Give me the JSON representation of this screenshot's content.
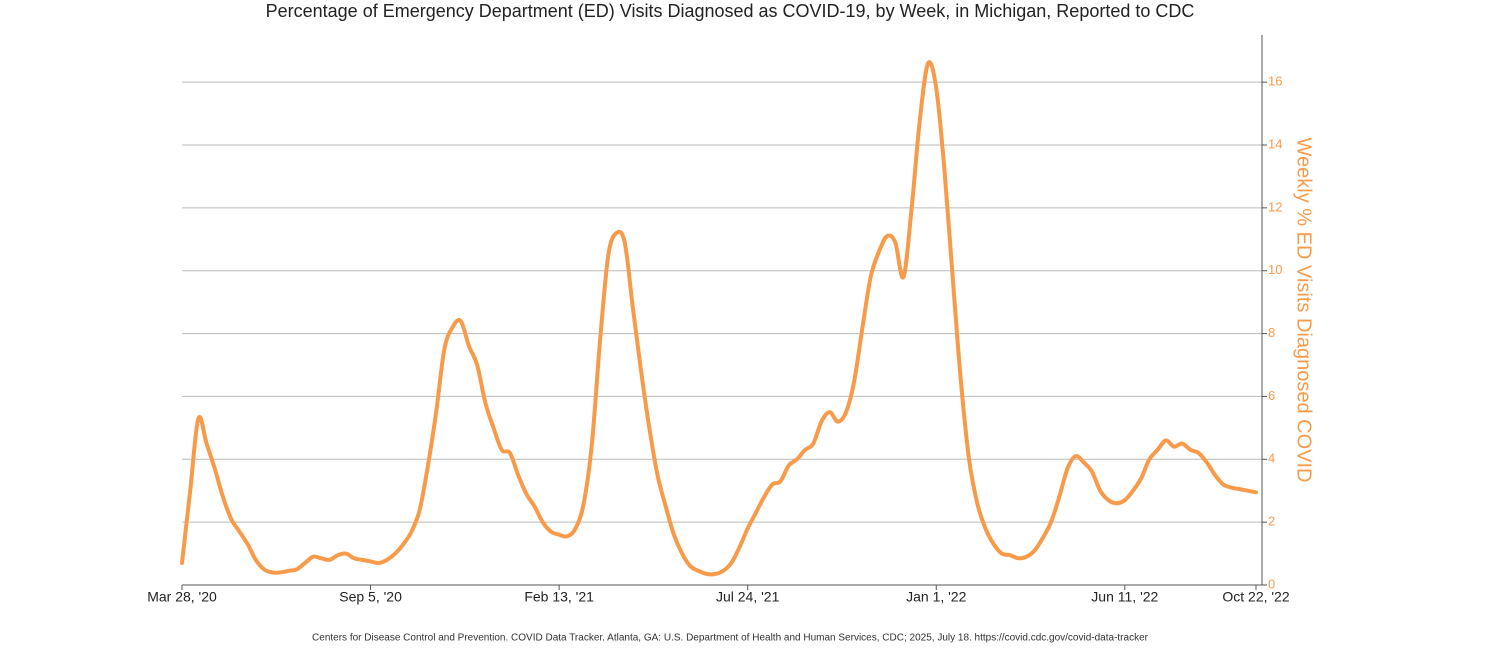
{
  "chart_data": {
    "type": "line",
    "title": "Percentage of Emergency Department (ED) Visits Diagnosed as COVID-19, by Week, in Michigan, Reported to CDC",
    "y_label": "Weekly % ED Visits Diagnosed COVID",
    "source": "Centers for Disease Control and Prevention. COVID Data Tracker. Atlanta, GA: U.S. Department of Health and Human Services, CDC; 2025, July 18. https://covid.cdc.gov/covid-data-tracker",
    "categories": [
      "Mar 28, '20",
      null,
      null,
      null,
      null,
      null,
      null,
      null,
      null,
      null,
      null,
      null,
      null,
      null,
      null,
      null,
      null,
      null,
      null,
      null,
      null,
      null,
      null,
      "Sep 5, '20",
      null,
      null,
      null,
      null,
      null,
      null,
      null,
      null,
      null,
      null,
      null,
      null,
      null,
      null,
      null,
      null,
      null,
      null,
      null,
      null,
      null,
      null,
      "Feb 13, '21",
      null,
      null,
      null,
      null,
      null,
      null,
      null,
      null,
      null,
      null,
      null,
      null,
      null,
      null,
      null,
      null,
      null,
      null,
      null,
      null,
      null,
      null,
      "Jul 24, '21",
      null,
      null,
      null,
      null,
      null,
      null,
      null,
      null,
      null,
      null,
      null,
      null,
      null,
      null,
      null,
      null,
      null,
      null,
      null,
      null,
      null,
      null,
      "Jan 1, '22",
      null,
      null,
      null,
      null,
      null,
      null,
      null,
      null,
      null,
      null,
      null,
      null,
      null,
      null,
      null,
      null,
      null,
      null,
      null,
      null,
      null,
      null,
      "Jun 11, '22",
      null,
      null,
      null,
      null,
      null,
      null,
      null,
      null,
      null,
      null,
      null,
      null,
      null,
      null,
      null,
      "Oct 22, '22"
    ],
    "series": [
      {
        "name": "Weekly % ED Visits Diagnosed COVID",
        "color": "#f79a4a",
        "axis": "y2",
        "values": [
          0.7,
          3.0,
          5.3,
          4.5,
          3.7,
          2.8,
          2.1,
          1.7,
          1.3,
          0.8,
          0.5,
          0.4,
          0.4,
          0.45,
          0.5,
          0.7,
          0.9,
          0.85,
          0.8,
          0.95,
          1.0,
          0.85,
          0.8,
          0.75,
          0.7,
          0.8,
          1.0,
          1.3,
          1.7,
          2.4,
          3.8,
          5.5,
          7.5,
          8.2,
          8.4,
          7.6,
          7.0,
          5.8,
          5.0,
          4.3,
          4.2,
          3.5,
          2.9,
          2.5,
          2.0,
          1.7,
          1.6,
          1.55,
          1.8,
          2.6,
          4.5,
          7.8,
          10.5,
          11.2,
          10.9,
          8.8,
          6.8,
          5.0,
          3.5,
          2.5,
          1.6,
          1.0,
          0.6,
          0.45,
          0.35,
          0.35,
          0.45,
          0.7,
          1.2,
          1.8,
          2.3,
          2.8,
          3.2,
          3.3,
          3.8,
          4.0,
          4.3,
          4.5,
          5.2,
          5.5,
          5.2,
          5.5,
          6.5,
          8.2,
          9.8,
          10.6,
          11.1,
          10.9,
          9.8,
          12.0,
          14.8,
          16.6,
          15.8,
          13.2,
          9.8,
          6.5,
          4.0,
          2.6,
          1.8,
          1.3,
          1.0,
          0.95,
          0.85,
          0.9,
          1.1,
          1.5,
          2.0,
          2.8,
          3.7,
          4.1,
          3.9,
          3.6,
          3.0,
          2.7,
          2.6,
          2.7,
          3.0,
          3.4,
          4.0,
          4.3,
          4.6,
          4.4,
          4.5,
          4.3,
          4.2,
          3.9,
          3.5,
          3.2,
          3.1,
          3.05,
          3.0,
          2.95
        ]
      }
    ],
    "y2lim": [
      0,
      17.5
    ],
    "y2ticks": [
      0,
      2,
      4,
      6,
      8,
      10,
      12,
      14,
      16
    ],
    "grid": true
  }
}
